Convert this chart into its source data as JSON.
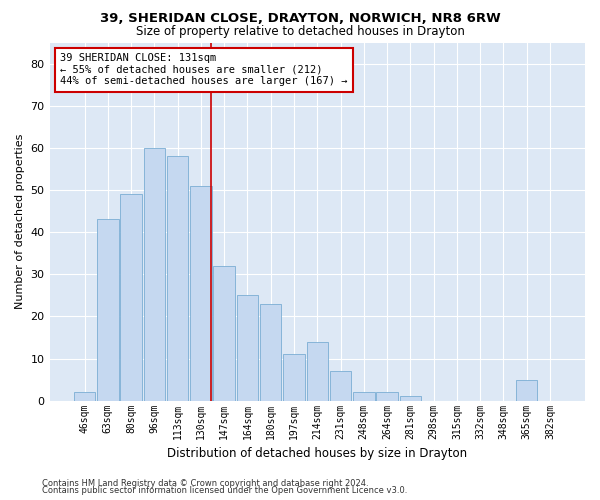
{
  "title1": "39, SHERIDAN CLOSE, DRAYTON, NORWICH, NR8 6RW",
  "title2": "Size of property relative to detached houses in Drayton",
  "xlabel": "Distribution of detached houses by size in Drayton",
  "ylabel": "Number of detached properties",
  "footer1": "Contains HM Land Registry data © Crown copyright and database right 2024.",
  "footer2": "Contains public sector information licensed under the Open Government Licence v3.0.",
  "annotation_title": "39 SHERIDAN CLOSE: 131sqm",
  "annotation_line1": "← 55% of detached houses are smaller (212)",
  "annotation_line2": "44% of semi-detached houses are larger (167) →",
  "bar_labels": [
    "46sqm",
    "63sqm",
    "80sqm",
    "96sqm",
    "113sqm",
    "130sqm",
    "147sqm",
    "164sqm",
    "180sqm",
    "197sqm",
    "214sqm",
    "231sqm",
    "248sqm",
    "264sqm",
    "281sqm",
    "298sqm",
    "315sqm",
    "332sqm",
    "348sqm",
    "365sqm",
    "382sqm"
  ],
  "bar_values": [
    2,
    43,
    49,
    60,
    58,
    51,
    32,
    25,
    23,
    11,
    14,
    7,
    2,
    2,
    1,
    0,
    0,
    0,
    0,
    5,
    0
  ],
  "bar_color": "#c5d8f0",
  "bar_edge_color": "#7aadd4",
  "vline_color": "#cc0000",
  "vline_x_index": 5.42,
  "annotation_box_color": "#cc0000",
  "plot_bg_color": "#dde8f5",
  "ylim": [
    0,
    85
  ],
  "yticks": [
    0,
    10,
    20,
    30,
    40,
    50,
    60,
    70,
    80
  ],
  "title1_fontsize": 9.5,
  "title2_fontsize": 8.5,
  "ylabel_fontsize": 8,
  "xlabel_fontsize": 8.5,
  "tick_fontsize": 8,
  "xtick_fontsize": 7,
  "ann_fontsize": 7.5,
  "footer_fontsize": 6
}
